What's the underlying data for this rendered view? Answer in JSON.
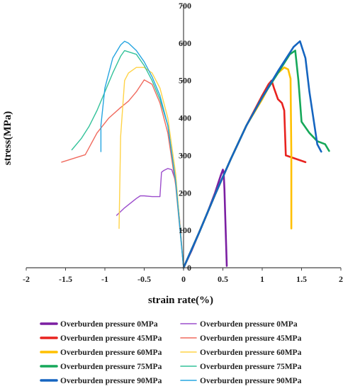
{
  "chart_data": {
    "type": "line",
    "title": "",
    "xlabel": "strain rate(%)",
    "ylabel": "stress(MPa)",
    "xlim": [
      -2,
      2
    ],
    "ylim": [
      0,
      700
    ],
    "x_ticks": [
      "-2",
      "-1.5",
      "-1",
      "-0.5",
      "0",
      "0.5",
      "1",
      "1.5",
      "2"
    ],
    "y_ticks": [
      "0",
      "100",
      "200",
      "300",
      "400",
      "500",
      "600",
      "700"
    ],
    "grid": false,
    "legend_position": "bottom",
    "series": [
      {
        "name": "Overburden pressure 0MPa",
        "color": "#7B1FA2",
        "width": 2.6,
        "legend_col": 0,
        "x": [
          0,
          0.1,
          0.2,
          0.3,
          0.4,
          0.47,
          0.5,
          0.51,
          0.52,
          0.53,
          0.55
        ],
        "y": [
          0,
          45,
          95,
          145,
          200,
          245,
          262,
          255,
          210,
          140,
          5
        ]
      },
      {
        "name": "Overburden pressure 0MPa",
        "color": "#9C4DCC",
        "width": 1.4,
        "legend_col": 1,
        "x": [
          -0.85,
          -0.75,
          -0.6,
          -0.55,
          -0.5,
          -0.4,
          -0.3,
          -0.28,
          -0.25,
          -0.2,
          -0.15,
          -0.1,
          -0.05,
          0
        ],
        "y": [
          140,
          160,
          185,
          192,
          192,
          190,
          190,
          255,
          260,
          265,
          262,
          230,
          130,
          0
        ]
      },
      {
        "name": "Overburden pressure 45MPa",
        "color": "#E8231F",
        "width": 2.6,
        "legend_col": 0,
        "x": [
          0,
          0.2,
          0.4,
          0.6,
          0.8,
          1.0,
          1.08,
          1.12,
          1.15,
          1.2,
          1.25,
          1.28,
          1.3,
          1.55
        ],
        "y": [
          0,
          95,
          195,
          290,
          380,
          460,
          490,
          500,
          480,
          450,
          440,
          420,
          300,
          282
        ]
      },
      {
        "name": "Overburden pressure 45MPa",
        "color": "#F06A5E",
        "width": 1.4,
        "legend_col": 1,
        "x": [
          -1.55,
          -1.4,
          -1.25,
          -1.1,
          -0.95,
          -0.8,
          -0.7,
          -0.6,
          -0.5,
          -0.4,
          -0.3,
          -0.2,
          -0.1,
          0
        ],
        "y": [
          282,
          292,
          302,
          360,
          400,
          428,
          445,
          470,
          502,
          490,
          440,
          360,
          220,
          0
        ]
      },
      {
        "name": "Overburden pressure 60MPa",
        "color": "#FFC000",
        "width": 2.6,
        "legend_col": 0,
        "x": [
          0,
          0.2,
          0.4,
          0.6,
          0.8,
          1.0,
          1.1,
          1.2,
          1.28,
          1.33,
          1.36,
          1.37,
          1.37
        ],
        "y": [
          0,
          95,
          195,
          290,
          380,
          450,
          490,
          520,
          535,
          530,
          505,
          300,
          105
        ]
      },
      {
        "name": "Overburden pressure 60MPa",
        "color": "#FFD347",
        "width": 1.4,
        "legend_col": 1,
        "x": [
          -0.82,
          -0.8,
          -0.75,
          -0.7,
          -0.6,
          -0.5,
          -0.4,
          -0.3,
          -0.2,
          -0.1,
          0
        ],
        "y": [
          105,
          350,
          500,
          520,
          535,
          535,
          520,
          480,
          400,
          250,
          0
        ]
      },
      {
        "name": "Overburden pressure 75MPa",
        "color": "#16A85A",
        "width": 2.6,
        "legend_col": 0,
        "x": [
          0,
          0.2,
          0.4,
          0.6,
          0.8,
          1.0,
          1.2,
          1.35,
          1.42,
          1.46,
          1.5,
          1.6,
          1.7,
          1.8,
          1.85
        ],
        "y": [
          0,
          95,
          195,
          290,
          380,
          455,
          520,
          570,
          580,
          500,
          390,
          360,
          338,
          330,
          312
        ]
      },
      {
        "name": "Overburden pressure 75MPa",
        "color": "#33C29A",
        "width": 1.4,
        "legend_col": 1,
        "x": [
          -1.42,
          -1.3,
          -1.2,
          -1.1,
          -1.0,
          -0.9,
          -0.8,
          -0.75,
          -0.6,
          -0.5,
          -0.4,
          -0.3,
          -0.2,
          -0.1,
          0
        ],
        "y": [
          315,
          345,
          378,
          420,
          470,
          520,
          565,
          580,
          570,
          540,
          500,
          450,
          380,
          230,
          0
        ]
      },
      {
        "name": "Overburden pressure 90MPa",
        "color": "#1565C0",
        "width": 2.6,
        "legend_col": 0,
        "x": [
          0,
          0.2,
          0.4,
          0.6,
          0.8,
          1.0,
          1.2,
          1.4,
          1.48,
          1.55,
          1.6,
          1.7,
          1.75
        ],
        "y": [
          0,
          95,
          195,
          290,
          380,
          455,
          525,
          590,
          605,
          560,
          470,
          330,
          310
        ]
      },
      {
        "name": "Overburden pressure 90MPa",
        "color": "#26A5E0",
        "width": 1.4,
        "legend_col": 1,
        "x": [
          -1.05,
          -1.05,
          -1.0,
          -0.9,
          -0.8,
          -0.75,
          -0.7,
          -0.6,
          -0.5,
          -0.4,
          -0.3,
          -0.2,
          -0.1,
          0
        ],
        "y": [
          310,
          380,
          480,
          560,
          595,
          605,
          600,
          580,
          550,
          510,
          460,
          380,
          230,
          0
        ]
      }
    ]
  }
}
